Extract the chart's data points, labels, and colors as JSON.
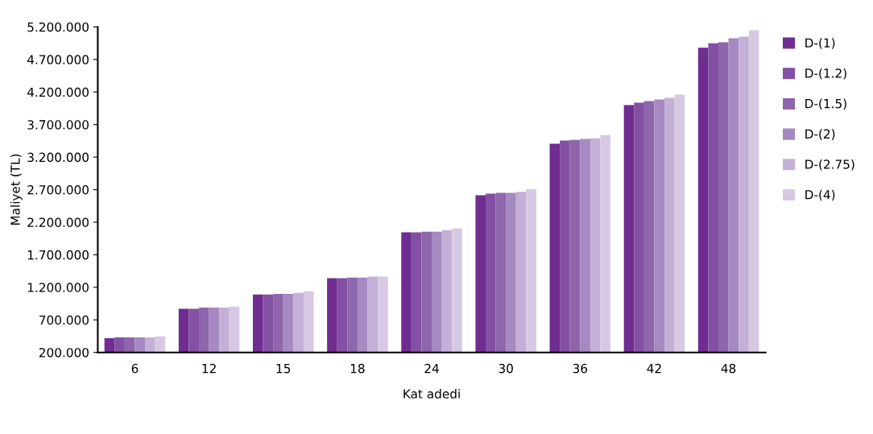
{
  "chart_data": {
    "type": "bar",
    "xlabel": "Kat adedi",
    "ylabel": "Maliyet (TL)",
    "categories": [
      "6",
      "12",
      "15",
      "18",
      "24",
      "30",
      "36",
      "42",
      "48"
    ],
    "series": [
      {
        "name": "D-(1)",
        "color": "#6f2c91",
        "values": [
          420000,
          870000,
          1090000,
          1340000,
          2045000,
          2615000,
          3405000,
          4000000,
          4880000
        ]
      },
      {
        "name": "D-(1.2)",
        "color": "#8350a3",
        "values": [
          430000,
          870000,
          1090000,
          1340000,
          2045000,
          2640000,
          3455000,
          4035000,
          4950000
        ]
      },
      {
        "name": "D-(1.5)",
        "color": "#8e66ab",
        "values": [
          430000,
          890000,
          1100000,
          1350000,
          2055000,
          2650000,
          3465000,
          4060000,
          4965000
        ]
      },
      {
        "name": "D-(2)",
        "color": "#a589c0",
        "values": [
          430000,
          890000,
          1100000,
          1350000,
          2055000,
          2650000,
          3480000,
          4085000,
          5025000
        ]
      },
      {
        "name": "D-(2.75)",
        "color": "#c4b0d6",
        "values": [
          430000,
          890000,
          1115000,
          1365000,
          2080000,
          2665000,
          3490000,
          4110000,
          5050000
        ]
      },
      {
        "name": "D-(4)",
        "color": "#d7c9e3",
        "values": [
          445000,
          905000,
          1140000,
          1365000,
          2105000,
          2710000,
          3540000,
          4160000,
          5150000
        ]
      }
    ],
    "ylim": [
      200000,
      5200000
    ],
    "yticks": [
      {
        "value": 200000,
        "label": "200.000"
      },
      {
        "value": 700000,
        "label": "700.000"
      },
      {
        "value": 1200000,
        "label": "1.200.000"
      },
      {
        "value": 1700000,
        "label": "1.700.000"
      },
      {
        "value": 2200000,
        "label": "2.200.000"
      },
      {
        "value": 2700000,
        "label": "2.700.000"
      },
      {
        "value": 3200000,
        "label": "3.200.000"
      },
      {
        "value": 3700000,
        "label": "3.700.000"
      },
      {
        "value": 4200000,
        "label": "4.200.000"
      },
      {
        "value": 4700000,
        "label": "4.700.000"
      },
      {
        "value": 5200000,
        "label": "5.200.000"
      }
    ],
    "grid": false,
    "legend": "right"
  }
}
